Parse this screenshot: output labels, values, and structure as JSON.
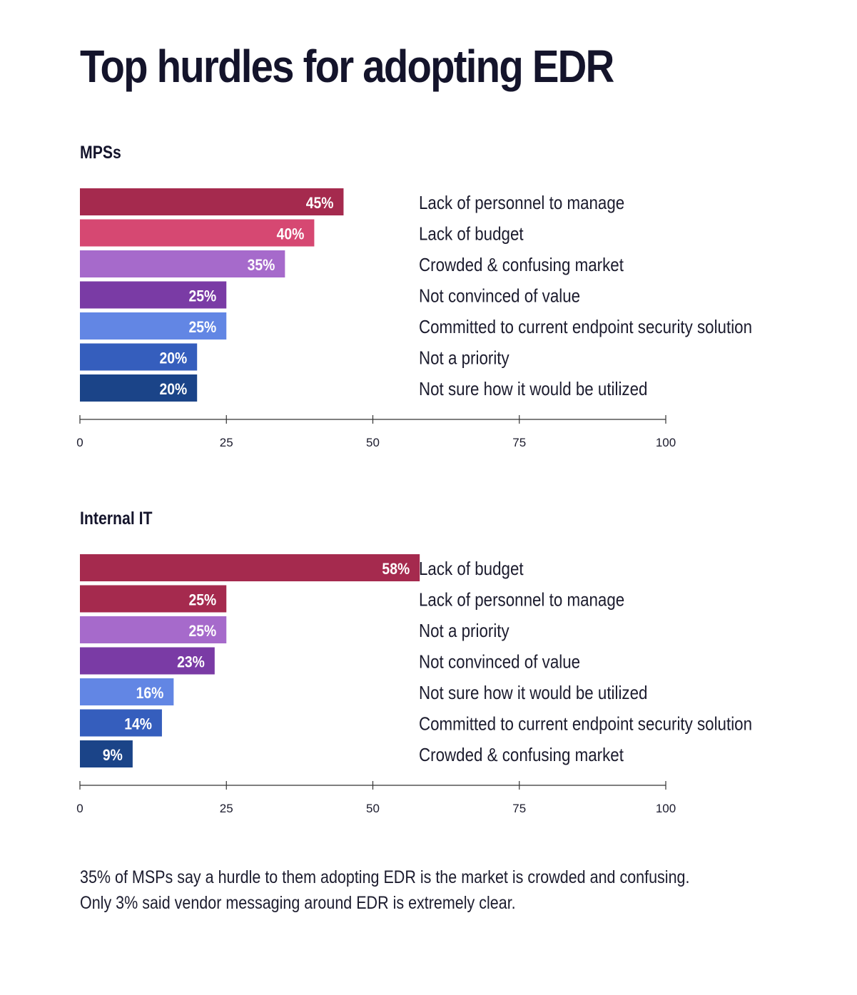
{
  "title": "Top hurdles for adopting EDR",
  "chart_data": [
    {
      "type": "bar",
      "orientation": "horizontal",
      "title": "MPSs",
      "xlim": [
        0,
        100
      ],
      "xticks": [
        0,
        25,
        50,
        75,
        100
      ],
      "categories": [
        "Lack of personnel to manage",
        "Lack of budget",
        "Crowded & confusing market",
        "Not convinced of value",
        "Committed to current endpoint security solution",
        "Not a priority",
        "Not sure how it would be utilized"
      ],
      "values": [
        45,
        40,
        35,
        25,
        25,
        20,
        20
      ],
      "labels": [
        "45%",
        "40%",
        "35%",
        "25%",
        "25%",
        "20%",
        "20%"
      ],
      "colors": [
        "#a52a4e",
        "#d64872",
        "#a66acb",
        "#7a3ba5",
        "#6286e4",
        "#355ebd",
        "#1b4488"
      ]
    },
    {
      "type": "bar",
      "orientation": "horizontal",
      "title": "Internal IT",
      "xlim": [
        0,
        100
      ],
      "xticks": [
        0,
        25,
        50,
        75,
        100
      ],
      "categories": [
        "Lack of budget",
        "Lack of personnel to manage",
        "Not a priority",
        "Not convinced of value",
        "Not sure how it would be utilized",
        "Committed to current endpoint security solution",
        "Crowded & confusing market"
      ],
      "values": [
        58,
        25,
        25,
        23,
        16,
        14,
        9
      ],
      "labels": [
        "58%",
        "25%",
        "25%",
        "23%",
        "16%",
        "14%",
        "9%"
      ],
      "colors": [
        "#a52a4e",
        "#a52a4e",
        "#a66acb",
        "#7a3ba5",
        "#6286e4",
        "#355ebd",
        "#1b4488"
      ]
    }
  ],
  "note": [
    "35% of MSPs say a hurdle to them adopting EDR is the market is crowded and confusing.",
    "Only 3% said vendor messaging around EDR is extremely clear."
  ]
}
